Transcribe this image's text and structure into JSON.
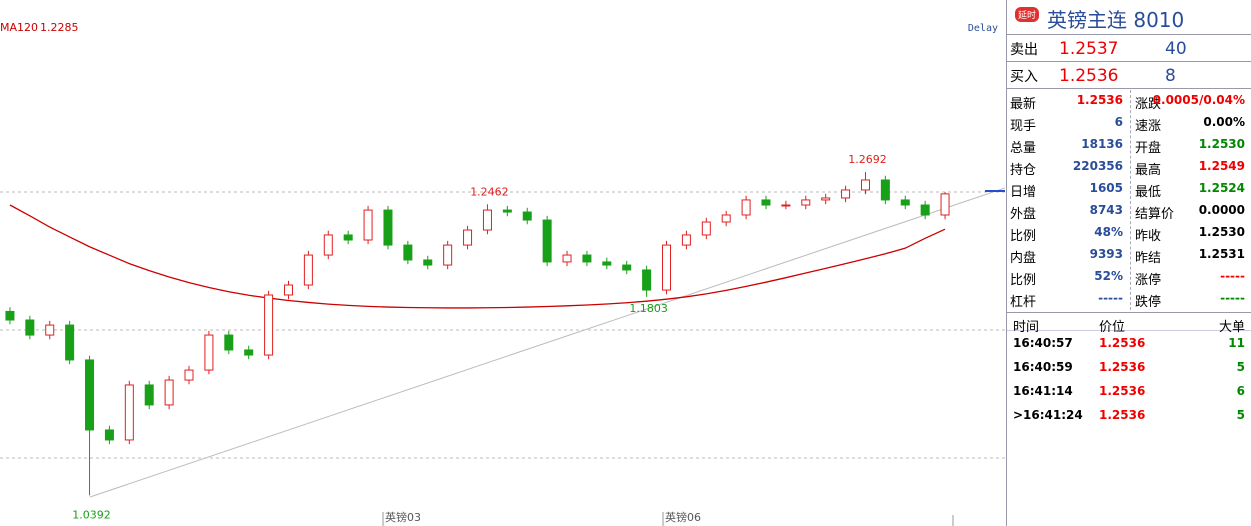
{
  "chart_data": {
    "type": "candlestick",
    "delay": "Delay",
    "x_labels": [
      "英镑03",
      "英镑06"
    ],
    "ylim": [
      1.0174,
      1.3915
    ],
    "up_color": "#e02020",
    "down_color": "#18a018",
    "open": [
      1.17,
      1.1639,
      1.1532,
      1.1603,
      1.1355,
      1.0857,
      1.0786,
      1.1177,
      1.1035,
      1.1212,
      1.1283,
      1.1532,
      1.1426,
      1.139,
      1.1817,
      1.1888,
      1.2101,
      1.2244,
      1.2208,
      1.2421,
      1.2172,
      1.2066,
      1.203,
      1.2172,
      1.2279,
      1.2421,
      1.2407,
      1.235,
      1.2052,
      1.2101,
      1.2052,
      1.203,
      1.1995,
      1.1852,
      1.2172,
      1.2244,
      1.2336,
      1.2386,
      1.2493,
      1.2457,
      1.2457,
      1.2493,
      1.2507,
      1.2564,
      1.2635,
      1.2493,
      1.2457,
      1.2386
    ],
    "high": [
      1.173,
      1.1669,
      1.1633,
      1.1633,
      1.1385,
      1.0887,
      1.1207,
      1.1207,
      1.1242,
      1.1313,
      1.1562,
      1.1562,
      1.1456,
      1.1847,
      1.1918,
      1.2131,
      1.2274,
      1.2274,
      1.2451,
      1.2451,
      1.2202,
      1.2096,
      1.2202,
      1.2309,
      1.2462,
      1.2451,
      1.2437,
      1.238,
      1.2131,
      1.2131,
      1.2082,
      1.206,
      1.2025,
      1.2202,
      1.2274,
      1.2366,
      1.2416,
      1.2523,
      1.2523,
      1.2487,
      1.2523,
      1.2537,
      1.2594,
      1.2692,
      1.2665,
      1.2523,
      1.2487,
      1.2549
    ],
    "low": [
      1.1609,
      1.1502,
      1.1502,
      1.1325,
      1.0392,
      1.0756,
      1.0756,
      1.1005,
      1.1005,
      1.1182,
      1.1253,
      1.1396,
      1.136,
      1.136,
      1.1787,
      1.1858,
      1.2071,
      1.2178,
      1.2178,
      1.2142,
      1.2036,
      1.2,
      1.2,
      1.2142,
      1.2249,
      1.2377,
      1.232,
      1.2022,
      1.2022,
      1.2022,
      1.2,
      1.1965,
      1.1803,
      1.1822,
      1.2142,
      1.2214,
      1.2306,
      1.2356,
      1.2427,
      1.2427,
      1.2427,
      1.2463,
      1.2477,
      1.2534,
      1.2463,
      1.2427,
      1.2356,
      1.2356
    ],
    "close": [
      1.1639,
      1.1532,
      1.1603,
      1.1355,
      1.0857,
      1.0786,
      1.1177,
      1.1035,
      1.1212,
      1.1283,
      1.1532,
      1.1426,
      1.139,
      1.1817,
      1.1888,
      1.2101,
      1.2244,
      1.2208,
      1.2421,
      1.2172,
      1.2066,
      1.203,
      1.2172,
      1.2279,
      1.2421,
      1.2407,
      1.235,
      1.2052,
      1.2101,
      1.2052,
      1.203,
      1.1995,
      1.1852,
      1.2172,
      1.2244,
      1.2336,
      1.2386,
      1.2493,
      1.2457,
      1.2457,
      1.2493,
      1.2507,
      1.2564,
      1.2635,
      1.2493,
      1.2457,
      1.2386,
      1.2536
    ],
    "series": [
      {
        "name": "MA120",
        "color": "#cc0000",
        "values": [
          1.2457,
          1.238,
          1.23,
          1.223,
          1.216,
          1.21,
          1.204,
          1.199,
          1.1945,
          1.1905,
          1.187,
          1.184,
          1.1815,
          1.1795,
          1.1778,
          1.1764,
          1.1752,
          1.1743,
          1.1736,
          1.1731,
          1.1728,
          1.1726,
          1.1725,
          1.1725,
          1.1726,
          1.1728,
          1.1731,
          1.1735,
          1.174,
          1.1746,
          1.1753,
          1.1762,
          1.1773,
          1.1787,
          1.1804,
          1.1825,
          1.185,
          1.1878,
          1.1908,
          1.194,
          1.1973,
          1.2006,
          1.204,
          1.2075,
          1.211,
          1.215,
          1.222,
          1.2285
        ]
      }
    ]
  },
  "panel": {
    "badge": "延时",
    "title": "英镑主连",
    "code": "8010",
    "ask": {
      "label": "卖出",
      "price": "1.2537",
      "volume": "40"
    },
    "bid": {
      "label": "买入",
      "price": "1.2536",
      "volume": "8"
    },
    "stats": [
      [
        "最新",
        "1.2536",
        "涨跌",
        "0.0005/0.04%"
      ],
      [
        "现手",
        "6",
        "速涨",
        "0.00%"
      ],
      [
        "总量",
        "18136",
        "开盘",
        "1.2530"
      ],
      [
        "持仓",
        "220356",
        "最高",
        "1.2549"
      ],
      [
        "日增",
        "1605",
        "最低",
        "1.2524"
      ],
      [
        "外盘",
        "8743",
        "结算价",
        "0.0000"
      ],
      [
        "比例",
        "48%",
        "昨收",
        "1.2530"
      ],
      [
        "内盘",
        "9393",
        "昨结",
        "1.2531"
      ],
      [
        "比例",
        "52%",
        "涨停",
        "-----"
      ],
      [
        "杠杆",
        "-----",
        "跌停",
        "-----"
      ]
    ],
    "trades_header": [
      "时间",
      "价位",
      "大单"
    ],
    "trades": [
      [
        "16:40:57",
        "1.2536",
        "11"
      ],
      [
        "16:40:59",
        "1.2536",
        "5"
      ],
      [
        "16:41:14",
        "1.2536",
        "6"
      ],
      [
        ">16:41:24",
        "1.2536",
        "5"
      ]
    ]
  }
}
